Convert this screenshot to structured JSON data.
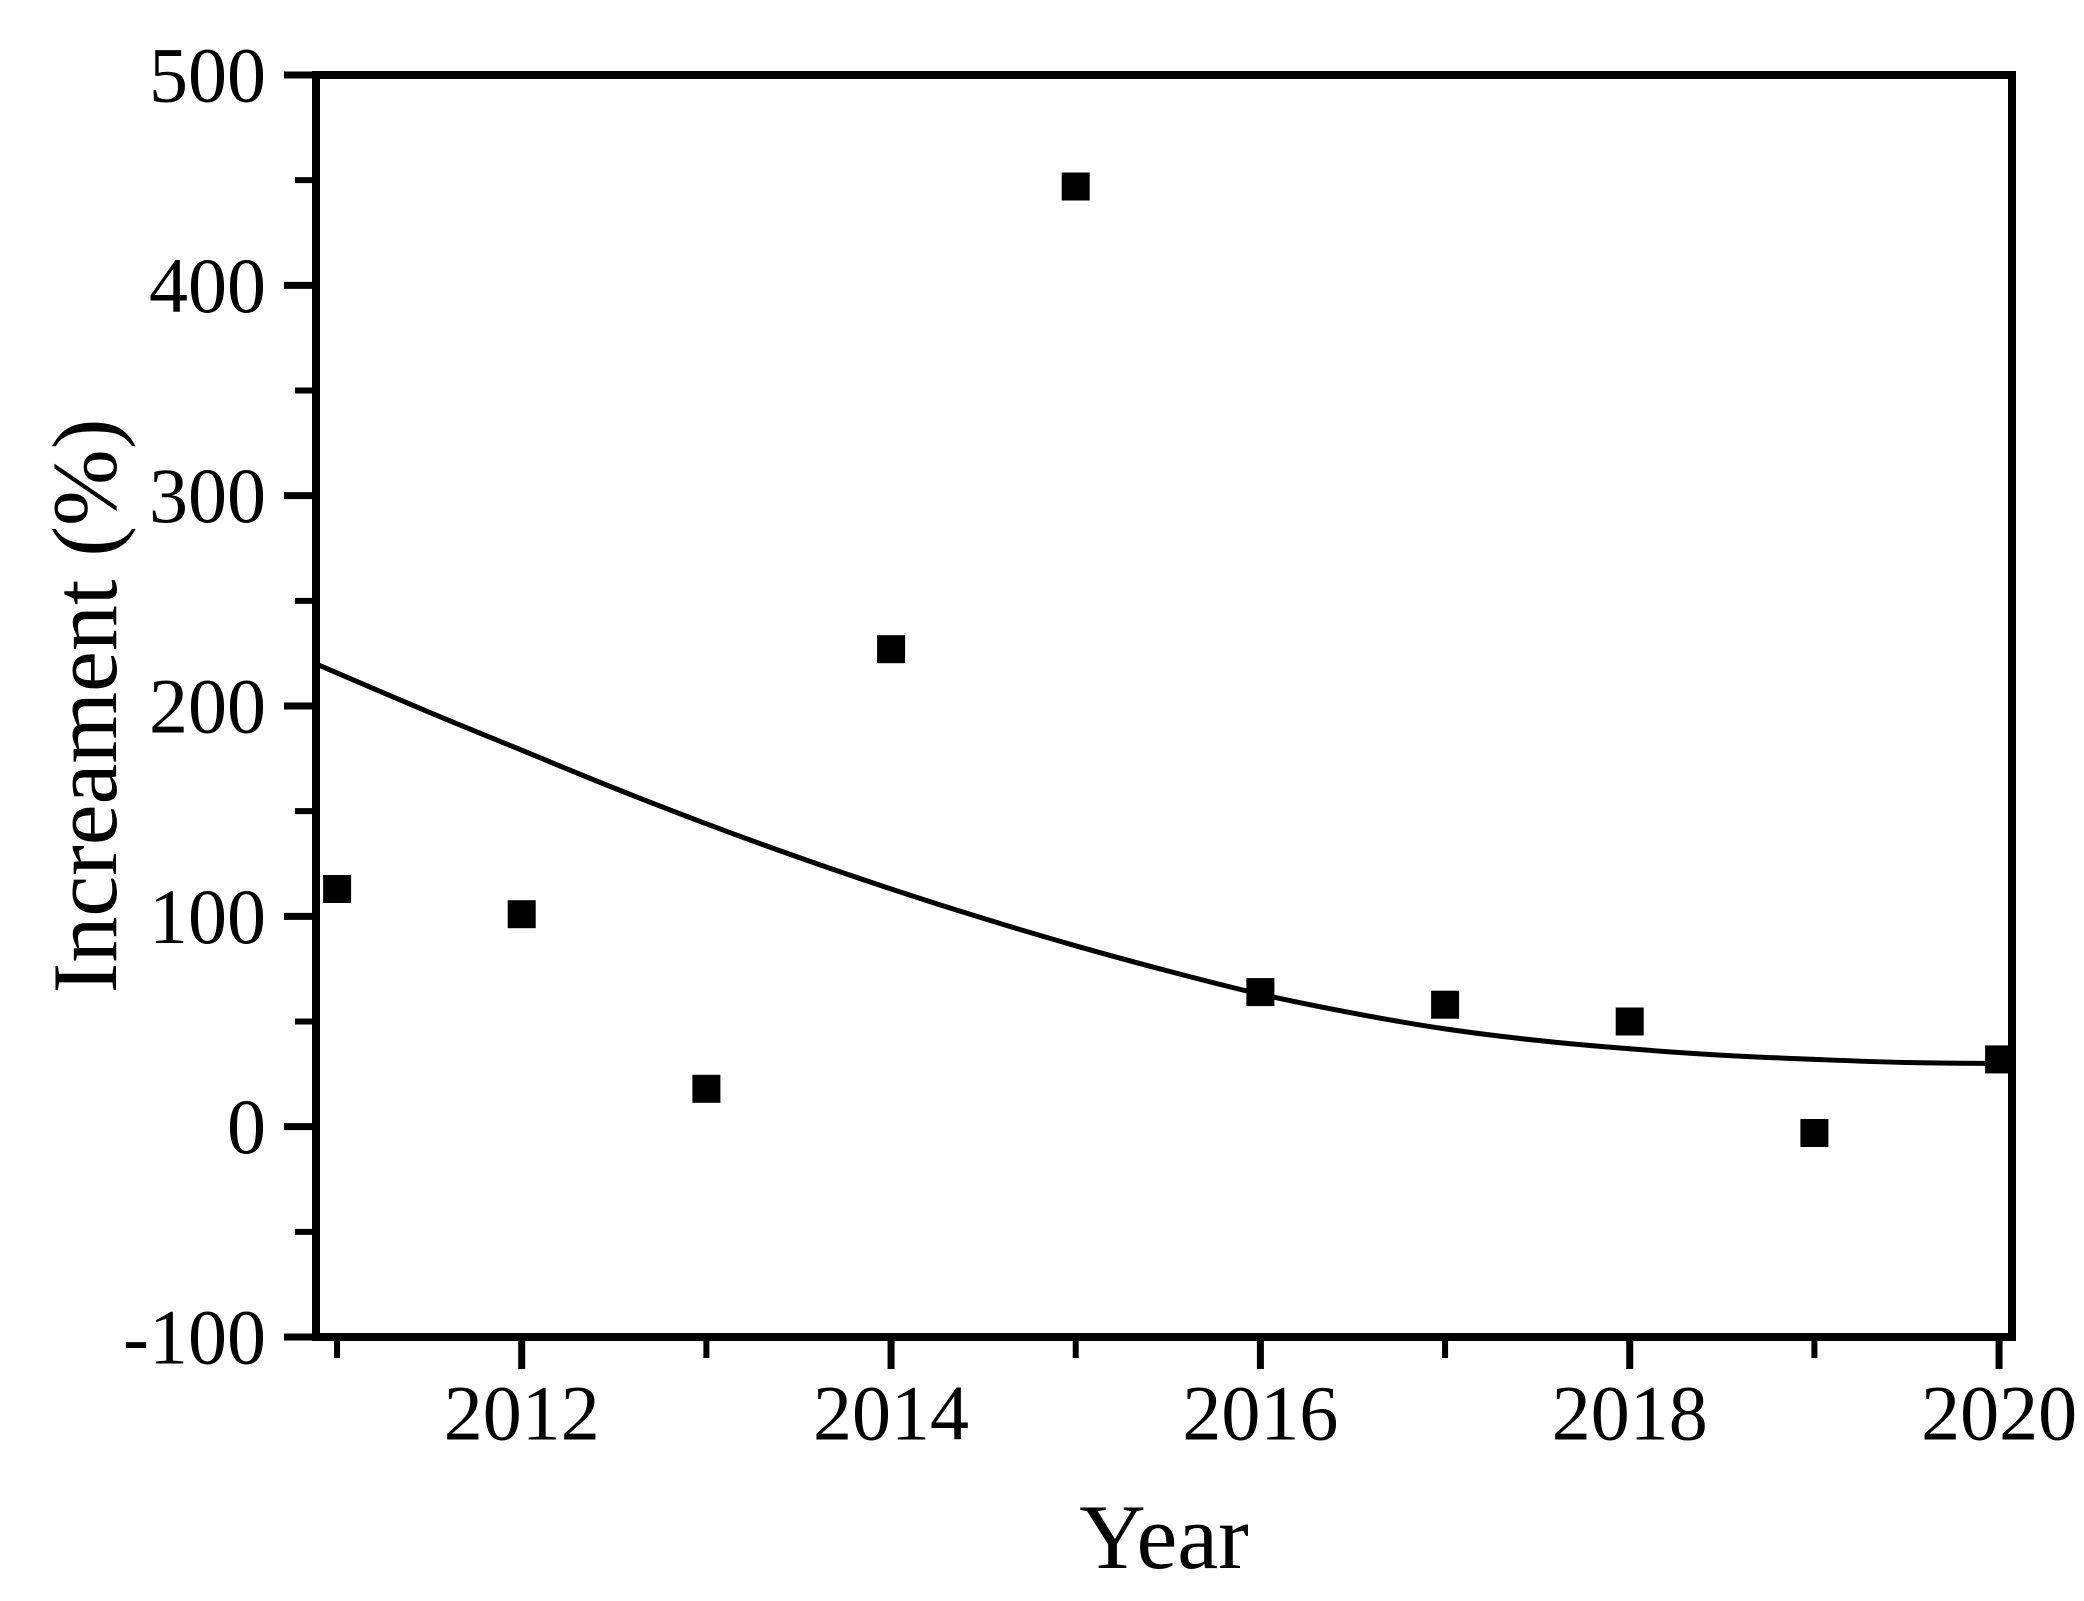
{
  "chart_data": {
    "type": "scatter",
    "title": "",
    "xlabel": "Year",
    "ylabel": "Increament (%)",
    "xlim": [
      2010.886,
      2020.07
    ],
    "ylim": [
      -100,
      500
    ],
    "grid": false,
    "legend": "none",
    "background_color": "#ffffff",
    "axis_color": "#000000",
    "marker": "filled-square",
    "marker_color": "#000000",
    "curve_color": "#000000",
    "x_ticks_major": [
      2012,
      2014,
      2016,
      2018,
      2020
    ],
    "x_ticks_minor": [
      2011,
      2013,
      2015,
      2017,
      2019
    ],
    "y_ticks_major": [
      500,
      400,
      300,
      200,
      100,
      0,
      -100
    ],
    "y_ticks_minor": [
      450,
      350,
      250,
      150,
      50,
      -50
    ],
    "series": [
      {
        "name": "yearly-increment-points",
        "type": "scatter",
        "x": [
          2011,
          2012,
          2013,
          2014,
          2015,
          2016,
          2017,
          2018,
          2019,
          2020
        ],
        "y": [
          113,
          101,
          18,
          227,
          447,
          64,
          58,
          50,
          -3,
          32
        ]
      },
      {
        "name": "exponential-decay-fit",
        "type": "line",
        "x": [
          2010.886,
          2011.5,
          2012,
          2012.5,
          2013,
          2013.5,
          2014,
          2014.5,
          2015,
          2015.5,
          2016,
          2016.5,
          2017,
          2017.5,
          2018,
          2018.5,
          2019,
          2019.5,
          2020.07
        ],
        "y": [
          220,
          197,
          179,
          161,
          144,
          128,
          113,
          99,
          86,
          74,
          63,
          54,
          46.5,
          41,
          37,
          34,
          32,
          30.5,
          30
        ]
      }
    ]
  }
}
